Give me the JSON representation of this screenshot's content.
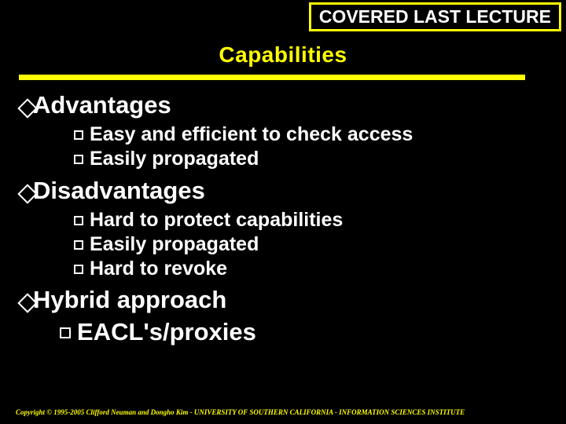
{
  "banner": "COVERED LAST LECTURE",
  "title": "Capabilities",
  "sections": {
    "s0": {
      "heading": "Advantages",
      "items": {
        "i0": "Easy and efficient to check access",
        "i1": "Easily propagated"
      }
    },
    "s1": {
      "heading": "Disadvantages",
      "items": {
        "i0": "Hard to protect capabilities",
        "i1": "Easily propagated",
        "i2": "Hard to revoke"
      }
    },
    "s2": {
      "heading": "Hybrid approach",
      "items": {
        "i0": "EACL's/proxies"
      }
    }
  },
  "copyright": "Copyright © 1995-2005 Clifford Neuman and Dongho Kim - UNIVERSITY OF SOUTHERN CALIFORNIA - INFORMATION SCIENCES INSTITUTE",
  "colors": {
    "bg": "#000000",
    "accent": "#ffff00",
    "text": "#ffffff"
  }
}
